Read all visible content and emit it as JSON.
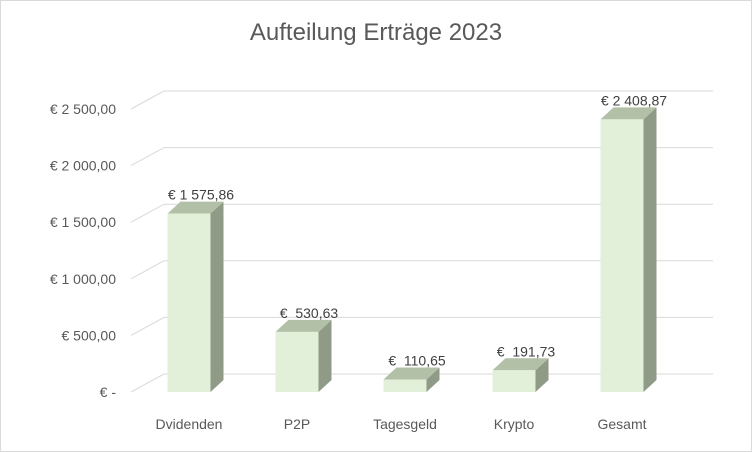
{
  "chart_data": {
    "type": "bar",
    "title": "Aufteilung Erträge 2023",
    "xlabel": "",
    "ylabel": "",
    "categories": [
      "Dvidenden",
      "P2P",
      "Tagesgeld",
      "Krypto",
      "Gesamt"
    ],
    "values": [
      1575.86,
      530.63,
      110.65,
      191.73,
      2408.87
    ],
    "value_labels": [
      "€ 1 575,86",
      "€  530,63",
      "€  110,65",
      "€  191,73",
      "€ 2 408,87"
    ],
    "ylim": [
      0,
      2500
    ],
    "yticks": [
      0,
      500,
      1000,
      1500,
      2000,
      2500
    ],
    "ytick_labels": [
      "€ -",
      "€  500,00",
      "€ 1 000,00",
      "€ 1 500,00",
      "€ 2 000,00",
      "€ 2 500,00"
    ],
    "grid": true,
    "style": "3d-column",
    "colors": {
      "front": "#e2efd9",
      "side": "#8f9a87",
      "top": "#b3c0a8",
      "grid": "#d9d9d9"
    }
  }
}
